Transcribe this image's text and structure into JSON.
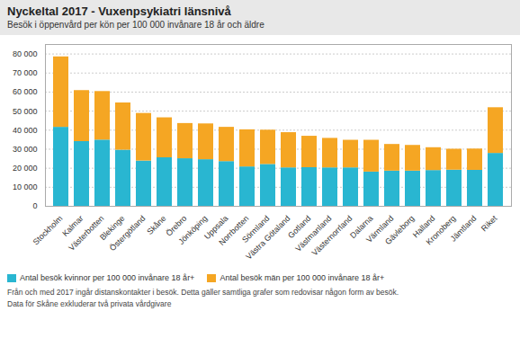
{
  "chart_data": {
    "type": "bar",
    "stacked": true,
    "title": "Nyckeltal 2017 - Vuxenpsykiatri länsnivå",
    "subtitle": "Besök i öppenvård per kön per 100 000 invånare 18 år och äldre",
    "categories": [
      "Stockholm",
      "Kalmar",
      "Västerbotten",
      "Blekinge",
      "Östergötland",
      "Skåne",
      "Örebro",
      "Jönköping",
      "Uppsala",
      "Norrbotten",
      "Sörmland",
      "Västra Götaland",
      "Gotland",
      "Västmanland",
      "Västernorrland",
      "Dalarna",
      "Värmland",
      "Gävleborg",
      "Halland",
      "Kronoberg",
      "Jämtland",
      "Riket"
    ],
    "series": [
      {
        "name": "Antal besök kvinnor per 100 000 invånare 18 år+",
        "color": "#29b6d1",
        "values": [
          41500,
          34000,
          34800,
          29500,
          23800,
          25500,
          25000,
          24500,
          23500,
          20700,
          22000,
          20200,
          20300,
          20200,
          20200,
          18000,
          18500,
          18500,
          18800,
          19000,
          18900,
          27800
        ]
      },
      {
        "name": "Antal besök män per 100 000 invånare 18 år+",
        "color": "#f5a623",
        "values": [
          37000,
          26800,
          25500,
          24800,
          25000,
          21000,
          18500,
          18800,
          18000,
          19500,
          18000,
          18500,
          16500,
          15500,
          14500,
          16700,
          14000,
          13500,
          12000,
          11000,
          11200,
          24000
        ]
      }
    ],
    "ylim": [
      0,
      85000
    ],
    "yticks": [
      0,
      {
        "value": 10000,
        "label": "10 000"
      },
      {
        "value": 20000,
        "label": "20 000"
      },
      {
        "value": 30000,
        "label": "30 000"
      },
      {
        "value": 40000,
        "label": "40 000"
      },
      {
        "value": 50000,
        "label": "50 000"
      },
      {
        "value": 60000,
        "label": "60 000"
      },
      {
        "value": 70000,
        "label": "70 000"
      },
      {
        "value": 80000,
        "label": "80 000"
      }
    ],
    "grid": true,
    "legend": "bottom",
    "annotations": [
      "Från och med 2017 ingår distanskontakter i besök. Detta gäller samtliga grafer som redovisar någon form av besök.",
      "Data för Skåne exkluderar två privata vårdgivare"
    ]
  }
}
